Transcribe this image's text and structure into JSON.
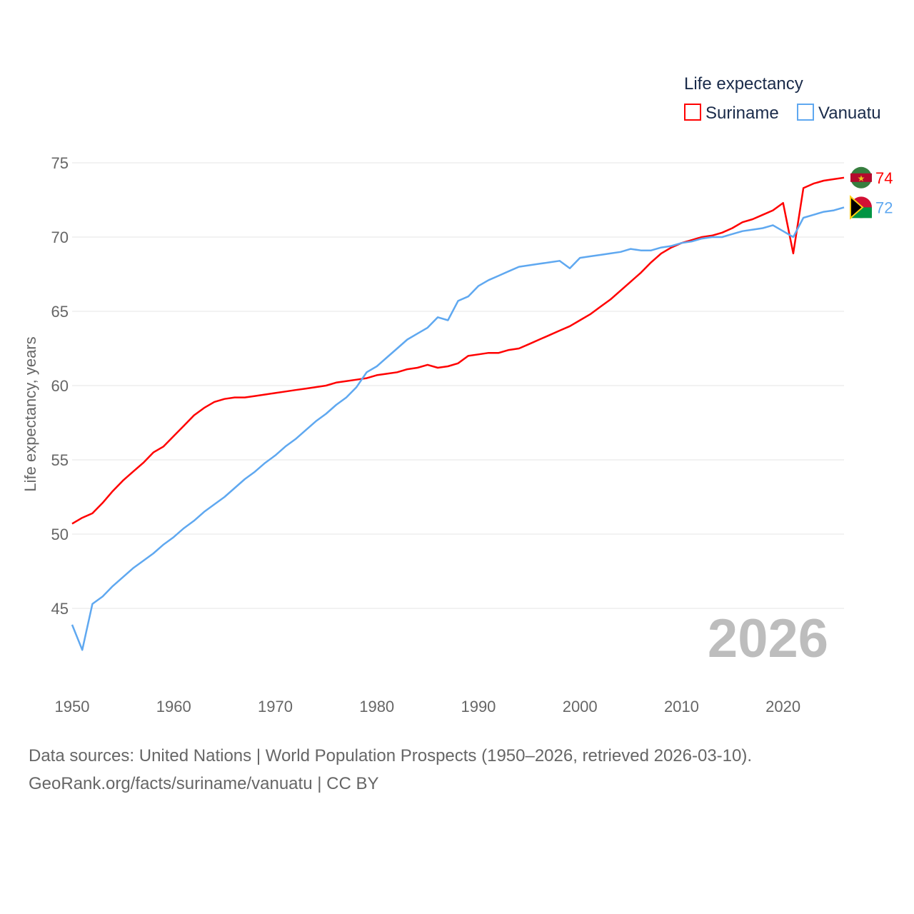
{
  "chart_data": {
    "type": "line",
    "title": "",
    "ylabel": "Life expectancy, years",
    "xlabel": "",
    "xlim": [
      1950,
      2026
    ],
    "ylim": [
      42,
      75
    ],
    "yticks": [
      45,
      50,
      55,
      60,
      65,
      70,
      75
    ],
    "xticks": [
      1950,
      1960,
      1970,
      1980,
      1990,
      2000,
      2010,
      2020
    ],
    "grid": true,
    "legend": {
      "title": "Life expectancy",
      "placement": "top-right"
    },
    "year_label": "2026",
    "x_start": 1950,
    "series": [
      {
        "name": "Suriname",
        "color": "#ff0000",
        "end_label": "74",
        "values": [
          50.7,
          51.1,
          51.4,
          52.1,
          52.9,
          53.6,
          54.2,
          54.8,
          55.5,
          55.9,
          56.6,
          57.3,
          58.0,
          58.5,
          58.9,
          59.1,
          59.2,
          59.2,
          59.3,
          59.4,
          59.5,
          59.6,
          59.7,
          59.8,
          59.9,
          60.0,
          60.2,
          60.3,
          60.4,
          60.5,
          60.7,
          60.8,
          60.9,
          61.1,
          61.2,
          61.4,
          61.2,
          61.3,
          61.5,
          62.0,
          62.1,
          62.2,
          62.2,
          62.4,
          62.5,
          62.8,
          63.1,
          63.4,
          63.7,
          64.0,
          64.4,
          64.8,
          65.3,
          65.8,
          66.4,
          67.0,
          67.6,
          68.3,
          68.9,
          69.3,
          69.6,
          69.8,
          70.0,
          70.1,
          70.3,
          70.6,
          71.0,
          71.2,
          71.5,
          71.8,
          72.3,
          68.9,
          73.3,
          73.6,
          73.8,
          73.9,
          74.0
        ]
      },
      {
        "name": "Vanuatu",
        "color": "#5fa8f0",
        "end_label": "72",
        "values": [
          43.9,
          42.2,
          45.3,
          45.8,
          46.5,
          47.1,
          47.7,
          48.2,
          48.7,
          49.3,
          49.8,
          50.4,
          50.9,
          51.5,
          52.0,
          52.5,
          53.1,
          53.7,
          54.2,
          54.8,
          55.3,
          55.9,
          56.4,
          57.0,
          57.6,
          58.1,
          58.7,
          59.2,
          59.9,
          60.9,
          61.3,
          61.9,
          62.5,
          63.1,
          63.5,
          63.9,
          64.6,
          64.4,
          65.7,
          66.0,
          66.7,
          67.1,
          67.4,
          67.7,
          68.0,
          68.1,
          68.2,
          68.3,
          68.4,
          67.9,
          68.6,
          68.7,
          68.8,
          68.9,
          69.0,
          69.2,
          69.1,
          69.1,
          69.3,
          69.4,
          69.6,
          69.7,
          69.9,
          70.0,
          70.0,
          70.2,
          70.4,
          70.5,
          70.6,
          70.8,
          70.4,
          70.0,
          71.3,
          71.5,
          71.7,
          71.8,
          72.0
        ]
      }
    ]
  },
  "footer": {
    "sources": "Data sources: United Nations | World Population Prospects (1950–2026, retrieved 2026-03-10).",
    "attribution": "GeoRank.org/facts/suriname/vanuatu | CC BY"
  }
}
